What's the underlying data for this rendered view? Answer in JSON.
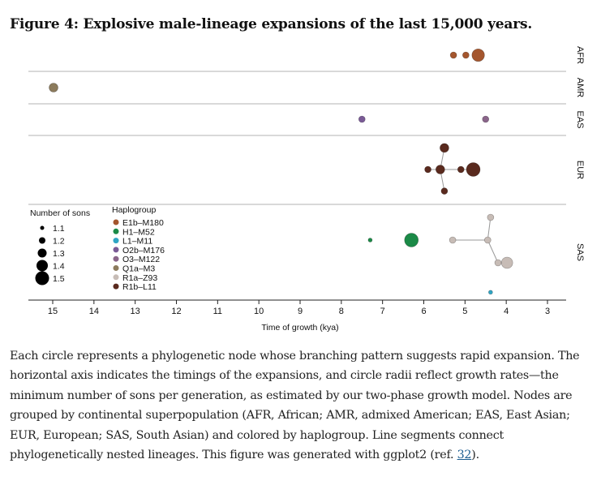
{
  "figure": {
    "title": "Figure 4: Explosive male-lineage expansions of the last 15,000 years.",
    "caption": "Each circle represents a phylogenetic node whose branching pattern suggests rapid expansion. The horizontal axis indicates the timings of the expansions, and circle radii reflect growth rates—the minimum number of sons per generation, as estimated by our two-phase growth model. Nodes are grouped by continental superpopulation (AFR, African; AMR, admixed American; EAS, East Asian; EUR, European; SAS, South Asian) and colored by haplogroup. Line segments connect phylogenetically nested lineages. This figure was generated with ggplot2 (ref. ",
    "caption_ref": "32",
    "caption_end": ")."
  },
  "chart_data": {
    "type": "scatter",
    "xlabel": "Time of growth (kya)",
    "xlim": [
      15.5,
      2.6
    ],
    "x_reversed": true,
    "xticks": [
      15,
      14,
      13,
      12,
      11,
      10,
      9,
      8,
      7,
      6,
      5,
      4,
      3
    ],
    "facets": [
      "AFR",
      "AMR",
      "EAS",
      "EUR",
      "SAS"
    ],
    "size_legend": {
      "title": "Number of sons",
      "values": [
        1.1,
        1.2,
        1.3,
        1.4,
        1.5
      ]
    },
    "color_legend": {
      "title": "Haplogroup",
      "items": [
        {
          "name": "E1b–M180",
          "color": "#a4562e"
        },
        {
          "name": "H1–M52",
          "color": "#1b8a47"
        },
        {
          "name": "L1–M11",
          "color": "#2fa5c4"
        },
        {
          "name": "O2b–M176",
          "color": "#7a5a96"
        },
        {
          "name": "O3–M122",
          "color": "#8a658a"
        },
        {
          "name": "Q1a–M3",
          "color": "#8c7b5c"
        },
        {
          "name": "R1a–Z93",
          "color": "#c7bcb6"
        },
        {
          "name": "R1b–L11",
          "color": "#5a2a1e"
        }
      ]
    },
    "points": [
      {
        "id": "afr1",
        "facet": "AFR",
        "x": 5.28,
        "sons": 1.2,
        "group": "E1b–M180",
        "level": 0
      },
      {
        "id": "afr2",
        "facet": "AFR",
        "x": 4.98,
        "sons": 1.2,
        "group": "E1b–M180",
        "level": 0
      },
      {
        "id": "afr3",
        "facet": "AFR",
        "x": 4.68,
        "sons": 1.45,
        "group": "E1b–M180",
        "level": 0
      },
      {
        "id": "amr1",
        "facet": "AMR",
        "x": 14.98,
        "sons": 1.3,
        "group": "Q1a–M3",
        "level": 0
      },
      {
        "id": "eas1",
        "facet": "EAS",
        "x": 7.5,
        "sons": 1.2,
        "group": "O2b–M176",
        "level": 0
      },
      {
        "id": "eas2",
        "facet": "EAS",
        "x": 4.5,
        "sons": 1.2,
        "group": "O3–M122",
        "level": 0
      },
      {
        "id": "eur1",
        "facet": "EUR",
        "x": 5.5,
        "sons": 1.3,
        "group": "R1b–L11",
        "level": 1.9
      },
      {
        "id": "eur2",
        "facet": "EUR",
        "x": 5.9,
        "sons": 1.2,
        "group": "R1b–L11",
        "level": 0
      },
      {
        "id": "eur3",
        "facet": "EUR",
        "x": 5.6,
        "sons": 1.3,
        "group": "R1b–L11",
        "level": 0
      },
      {
        "id": "eur4",
        "facet": "EUR",
        "x": 5.1,
        "sons": 1.2,
        "group": "R1b–L11",
        "level": 0
      },
      {
        "id": "eur5",
        "facet": "EUR",
        "x": 4.8,
        "sons": 1.5,
        "group": "R1b–L11",
        "level": 0
      },
      {
        "id": "eur6",
        "facet": "EUR",
        "x": 5.5,
        "sons": 1.2,
        "group": "R1b–L11",
        "level": -1.9
      },
      {
        "id": "sas1",
        "facet": "SAS",
        "x": 4.38,
        "sons": 1.2,
        "group": "R1a–Z93",
        "level": 2.0
      },
      {
        "id": "sas2",
        "facet": "SAS",
        "x": 7.3,
        "sons": 1.1,
        "group": "H1–M52",
        "level": 0
      },
      {
        "id": "sas3",
        "facet": "SAS",
        "x": 6.3,
        "sons": 1.5,
        "group": "H1–M52",
        "level": 0
      },
      {
        "id": "sas4",
        "facet": "SAS",
        "x": 5.3,
        "sons": 1.2,
        "group": "R1a–Z93",
        "level": 0
      },
      {
        "id": "sas5",
        "facet": "SAS",
        "x": 4.45,
        "sons": 1.2,
        "group": "R1a–Z93",
        "level": 0
      },
      {
        "id": "sas6",
        "facet": "SAS",
        "x": 4.2,
        "sons": 1.2,
        "group": "R1a–Z93",
        "level": -2.0
      },
      {
        "id": "sas7",
        "facet": "SAS",
        "x": 3.98,
        "sons": 1.4,
        "group": "R1a–Z93",
        "level": -2.0
      },
      {
        "id": "sas8",
        "facet": "SAS",
        "x": 4.38,
        "sons": 1.1,
        "group": "L1–M11",
        "level": -4.6
      }
    ],
    "segments": [
      [
        "eur2",
        "eur3"
      ],
      [
        "eur3",
        "eur1"
      ],
      [
        "eur3",
        "eur6"
      ],
      [
        "eur3",
        "eur4"
      ],
      [
        "eur4",
        "eur5"
      ],
      [
        "sas4",
        "sas5"
      ],
      [
        "sas5",
        "sas1"
      ],
      [
        "sas5",
        "sas6"
      ],
      [
        "sas6",
        "sas7"
      ]
    ]
  }
}
